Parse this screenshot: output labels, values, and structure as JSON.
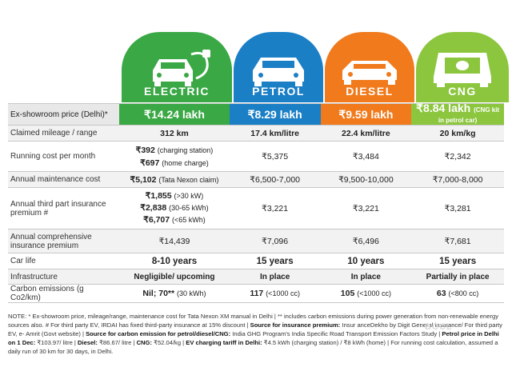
{
  "columns": {
    "electric": {
      "label": "ELECTRIC",
      "color": "#3aa845"
    },
    "petrol": {
      "label": "PETROL",
      "color": "#1b7fc6"
    },
    "diesel": {
      "label": "DIESEL",
      "color": "#f07a1c"
    },
    "cng": {
      "label": "CNG",
      "color": "#8cc63f"
    }
  },
  "rows": {
    "price": {
      "label": "Ex-showroom price (Delhi)*",
      "electric": "₹14.24 lakh",
      "petrol": "₹8.29 lakh",
      "diesel": "₹9.59 lakh",
      "cng": "₹8.84 lakh",
      "cng_note": "(CNG kit in petrol car)"
    },
    "mileage": {
      "label": "Claimed mileage / range",
      "electric": "312 km",
      "petrol": "17.4 km/litre",
      "diesel": "22.4 km/litre",
      "cng": "20 km/kg"
    },
    "running": {
      "label": "Running cost per month",
      "electric_1": "₹392",
      "electric_1_note": "(charging station)",
      "electric_2": "₹697",
      "electric_2_note": "(home charge)",
      "petrol": "₹5,375",
      "diesel": "₹3,484",
      "cng": "₹2,342"
    },
    "maintenance": {
      "label": "Annual maintenance cost",
      "electric": "₹5,102",
      "electric_note": "(Tata Nexon claim)",
      "petrol": "₹6,500-7,000",
      "diesel": "₹9,500-10,000",
      "cng": "₹7,000-8,000"
    },
    "third_party": {
      "label": "Annual third part insurance premium #",
      "electric_1": "₹1,855",
      "electric_1_note": "(>30 kW)",
      "electric_2": "₹2,838",
      "electric_2_note": "(30-65 kWh)",
      "electric_3": "₹6,707",
      "electric_3_note": "(<65 kWh)",
      "petrol": "₹3,221",
      "diesel": "₹3,221",
      "cng": "₹3,281"
    },
    "comprehensive": {
      "label": "Annual comprehensive insurance premium",
      "electric": "₹14,439",
      "petrol": "₹7,096",
      "diesel": "₹6,496",
      "cng": "₹7,681"
    },
    "life": {
      "label": "Car life",
      "electric": "8-10 years",
      "petrol": "15 years",
      "diesel": "10 years",
      "cng": "15 years"
    },
    "infra": {
      "label": "Infrastructure",
      "electric": "Negligible/ upcoming",
      "petrol": "In place",
      "diesel": "In place",
      "cng": "Partially in place"
    },
    "carbon": {
      "label": "Carbon emissions (g Co2/km)",
      "electric": "Nil; 70**",
      "electric_note": "(30 kWh)",
      "petrol": "117",
      "petrol_note": "(<1000 cc)",
      "diesel": "105",
      "diesel_note": "(<1000 cc)",
      "cng": "63",
      "cng_note": "(<800 cc)"
    }
  },
  "note": {
    "p1": "NOTE: * Ex-showroom price, mileage/range, maintenance cost for Tata Nexon XM manual in Delhi | ** includes carbon emissions during power generation from non-renewable energy sources also. # For third party EV, IRDAI has fixed third-party insurance at 15% discount |",
    "p2": "Source for insurance premium:",
    "p3": "Insur anceDekho by Digit General insurance/ For third party EV, e- Amrit (Govt website) |",
    "p4": "Source for carbon emission for petrol/diesel/CNG:",
    "p5": "India GHG Program's India Specific Road Transport Emission Factors Study |",
    "p6": "Petrol price in Delhi on 1 Dec:",
    "p7": "₹103.97/ litre |",
    "p8": "Diesel:",
    "p9": "₹86.67/ litre |",
    "p10": "CNG:",
    "p11": "₹52.04/kg |",
    "p12": "EV charging tariff in Delhi:",
    "p13": "₹4.5 kWh (charging station) / ₹8 kWh (home) | For running cost calculation, assumed a daily run of 30 km for 30 days, in Delhi."
  },
  "watermark": "BCCL"
}
